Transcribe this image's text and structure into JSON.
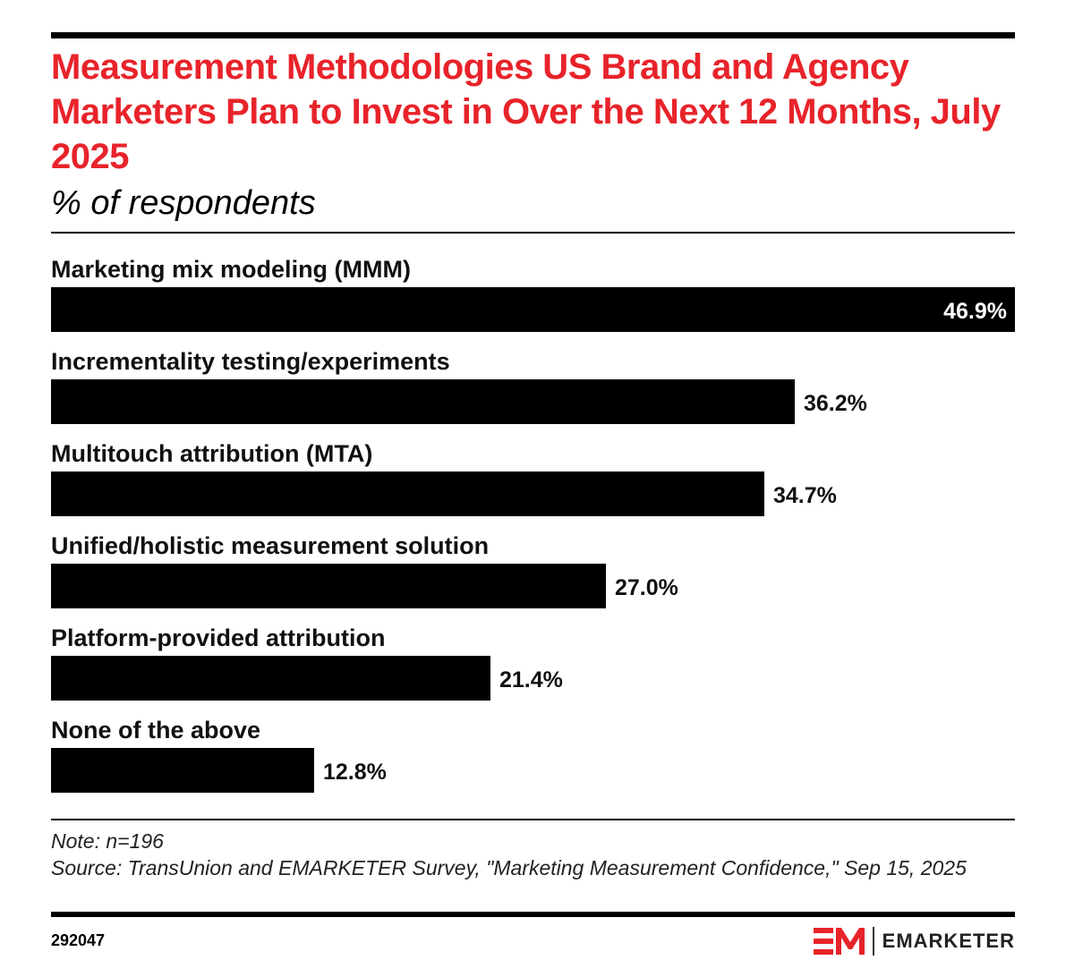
{
  "header": {
    "title": "Measurement Methodologies US Brand and Agency Marketers Plan to Invest in Over the Next 12 Months, July 2025",
    "subtitle": "% of respondents"
  },
  "chart_data": {
    "type": "bar",
    "orientation": "horizontal",
    "title": "Measurement Methodologies US Brand and Agency Marketers Plan to Invest in Over the Next 12 Months, July 2025",
    "subtitle": "% of respondents",
    "xlabel": "",
    "ylabel": "",
    "xlim": [
      0,
      46.9
    ],
    "grid": false,
    "categories": [
      "Marketing mix modeling (MMM)",
      "Incrementality testing/experiments",
      "Multitouch attribution (MTA)",
      "Unified/holistic measurement solution",
      "Platform-provided attribution",
      "None of the above"
    ],
    "values": [
      46.9,
      36.2,
      34.7,
      27.0,
      21.4,
      12.8
    ],
    "value_labels": [
      "46.9%",
      "36.2%",
      "34.7%",
      "27.0%",
      "21.4%",
      "12.8%"
    ],
    "bar_color": "#000000"
  },
  "footer": {
    "note": "Note: n=196",
    "source": "Source: TransUnion and EMARKETER Survey, \"Marketing Measurement Confidence,\" Sep 15, 2025",
    "chart_id": "292047",
    "brand": "EMARKETER"
  },
  "colors": {
    "title": "#e8232a",
    "bar": "#000000",
    "logo": "#e8232a"
  }
}
